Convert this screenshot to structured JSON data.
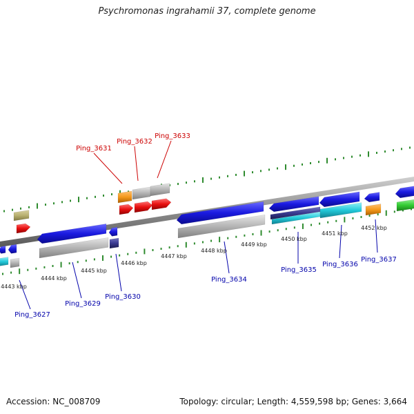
{
  "title": "Psychromonas ingrahamii 37, complete genome",
  "footer": {
    "accession": "Accession: NC_008709",
    "summary": "Topology: circular; Length: 4,559,598 bp; Genes: 3,664"
  },
  "colors": {
    "background": "#ffffff",
    "backbone": "#8a8a8a",
    "tick": "#2e8b2e",
    "upper_label": "#cc0000",
    "lower_label": "#0000aa",
    "gene_blue": "#1a1ae0",
    "gene_grey": "#b4b4b4",
    "gene_red": "#e81010",
    "gene_orange": "#f59a1c",
    "gene_olive": "#b8b070",
    "gene_cyan": "#22c8d8",
    "gene_green": "#33cc33",
    "gene_navy": "#3a3a90"
  },
  "kbp_labels": [
    "4443 kbp",
    "4444 kbp",
    "4445 kbp",
    "4446 kbp",
    "4447 kbp",
    "4448 kbp",
    "4449 kbp",
    "4450 kbp",
    "4451 kbp",
    "4452 kbp"
  ],
  "gene_labels_upper": [
    "Ping_3631",
    "Ping_3632",
    "Ping_3633"
  ],
  "gene_labels_lower": [
    "Ping_3627",
    "Ping_3629",
    "Ping_3630",
    "Ping_3634",
    "Ping_3635",
    "Ping_3636",
    "Ping_3637"
  ]
}
